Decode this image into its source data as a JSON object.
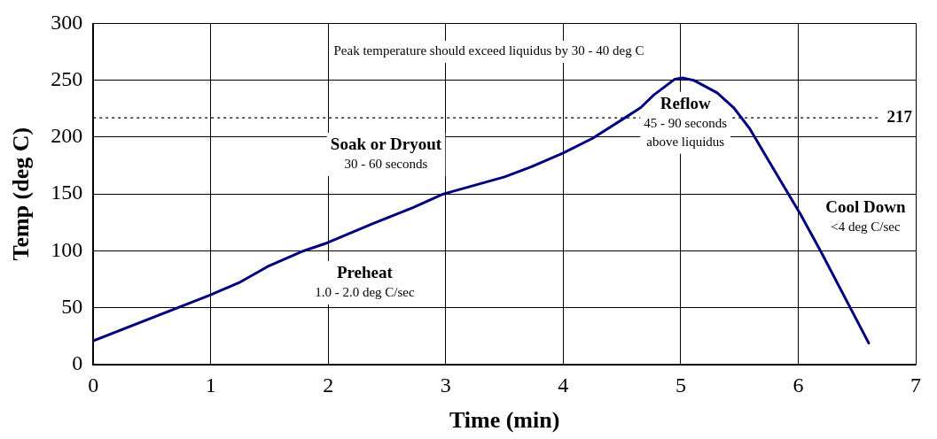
{
  "chart_data": {
    "type": "line",
    "xlabel": "Time (min)",
    "ylabel": "Temp (deg C)",
    "xlim": [
      0,
      7
    ],
    "xticks": [
      0,
      1,
      2,
      3,
      4,
      5,
      6,
      7
    ],
    "ylim": [
      0,
      300
    ],
    "yticks": [
      0,
      50,
      100,
      150,
      200,
      250,
      300
    ],
    "grid": true,
    "legend": false,
    "marker": "none",
    "line_style": "solid",
    "series": [
      {
        "color": "#000080",
        "x": [
          0,
          0.99,
          1.24,
          1.48,
          1.79,
          1.99,
          2.38,
          2.72,
          2.98,
          3.5,
          3.73,
          4.0,
          4.25,
          4.51,
          4.66,
          4.77,
          4.95,
          5.02,
          5.11,
          5.31,
          5.45,
          5.59,
          5.75,
          6.02,
          6.19,
          6.6
        ],
        "values": [
          21,
          61,
          72,
          86,
          100,
          107,
          124,
          138,
          150,
          165,
          174,
          186,
          199,
          216,
          226,
          237,
          251,
          252,
          250,
          239,
          226,
          207,
          179,
          132,
          100,
          19
        ]
      }
    ],
    "ref_lines": [
      {
        "axis": "y",
        "value": 217,
        "label": "217",
        "line_style": "dotted",
        "color": "#000000"
      }
    ],
    "annotations": [
      "Peak temperature should exceed liquidus by 30 - 40 deg C",
      "Soak or Dryout\n30 - 60 seconds",
      "Preheat\n1.0 - 2.0 deg C/sec",
      "Reflow\n45 - 90 seconds\nabove liquidus",
      "Cool Down\n<4 deg C/sec"
    ]
  }
}
